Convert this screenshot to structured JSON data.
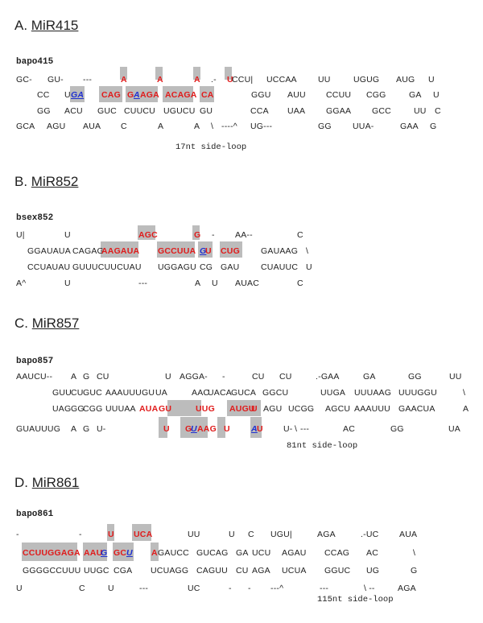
{
  "panels": [
    {
      "letter": "A.",
      "gene": "MiR415",
      "seq_name": "bapo415",
      "note": "17nt side-loop",
      "rows": [
        [
          {
            "t": "GC-"
          },
          {
            "t": "GU-"
          },
          {
            "t": "---"
          },
          {
            "t": "A",
            "c": "red"
          },
          {
            "t": "A",
            "c": "red"
          },
          {
            "t": "A",
            "c": "red"
          },
          {
            "t": ".-"
          },
          {
            "t": "U",
            "c": "red"
          },
          {
            "t": "CCU|"
          },
          {
            "t": "UCCAA"
          },
          {
            "t": "UU"
          },
          {
            "t": "UGUG"
          },
          {
            "t": "AUG"
          },
          {
            "t": "U"
          }
        ],
        [
          {
            "t": "CC"
          },
          {
            "t": "U"
          },
          {
            "t": "GA",
            "c": "blue"
          },
          {
            "t": "CAG",
            "c": "red"
          },
          {
            "t": "G",
            "c": "red"
          },
          {
            "t": "A",
            "c": "blue"
          },
          {
            "t": "AGA",
            "c": "red"
          },
          {
            "t": "ACAGA",
            "c": "red"
          },
          {
            "t": "CA",
            "c": "red"
          },
          {
            "t": "GGU"
          },
          {
            "t": "AUU"
          },
          {
            "t": "CCUU"
          },
          {
            "t": "CGG"
          },
          {
            "t": "GA"
          },
          {
            "t": "U"
          }
        ],
        [
          {
            "t": "GG"
          },
          {
            "t": "ACU"
          },
          {
            "t": "GUC"
          },
          {
            "t": "CUUCU"
          },
          {
            "t": "UGUCU"
          },
          {
            "t": "GU"
          },
          {
            "t": "CCA"
          },
          {
            "t": "UAA"
          },
          {
            "t": "GGAA"
          },
          {
            "t": "GCC"
          },
          {
            "t": "UU"
          },
          {
            "t": "C"
          }
        ],
        [
          {
            "t": "GCA"
          },
          {
            "t": "AGU"
          },
          {
            "t": "AUA"
          },
          {
            "t": "C"
          },
          {
            "t": "A"
          },
          {
            "t": "A"
          },
          {
            "t": "\\"
          },
          {
            "t": "----^"
          },
          {
            "t": "UG---"
          },
          {
            "t": "GG"
          },
          {
            "t": "UUA-"
          },
          {
            "t": "GAA"
          },
          {
            "t": "G"
          }
        ]
      ]
    },
    {
      "letter": "B.",
      "gene": "MiR852",
      "seq_name": "bsex852",
      "note": "",
      "rows": [
        [
          {
            "t": "U|"
          },
          {
            "t": "U"
          },
          {
            "t": "AGC",
            "c": "red"
          },
          {
            "t": "G",
            "c": "red"
          },
          {
            "t": "-"
          },
          {
            "t": "AA--"
          },
          {
            "t": "C"
          }
        ],
        [
          {
            "t": "GGAUAUA"
          },
          {
            "t": "CAGAG"
          },
          {
            "t": "AAGAUA",
            "c": "red"
          },
          {
            "t": "GCCUUA",
            "c": "red"
          },
          {
            "t": "G",
            "c": "blue"
          },
          {
            "t": "U",
            "c": "red"
          },
          {
            "t": "CUG",
            "c": "red"
          },
          {
            "t": "GAUAAG"
          },
          {
            "t": "\\"
          }
        ],
        [
          {
            "t": "CCUAUAU"
          },
          {
            "t": "GUUUCUUCUAU"
          },
          {
            "t": "UGGAGU"
          },
          {
            "t": "CG"
          },
          {
            "t": "GAU"
          },
          {
            "t": "CUAUUC"
          },
          {
            "t": "U"
          }
        ],
        [
          {
            "t": "A^"
          },
          {
            "t": "U"
          },
          {
            "t": "---"
          },
          {
            "t": "A"
          },
          {
            "t": "U"
          },
          {
            "t": "AUAC"
          },
          {
            "t": "C"
          }
        ]
      ]
    },
    {
      "letter": "C.",
      "gene": "MiR857",
      "seq_name": "bapo857",
      "note": "81nt side-loop",
      "rows": [
        [
          {
            "t": "AAUCU--"
          },
          {
            "t": "A"
          },
          {
            "t": "G"
          },
          {
            "t": "CU"
          },
          {
            "t": "U"
          },
          {
            "t": "AGGA-"
          },
          {
            "t": "-"
          },
          {
            "t": "CU"
          },
          {
            "t": "CU"
          },
          {
            "t": ".-GAA"
          },
          {
            "t": "GA"
          },
          {
            "t": "GG"
          },
          {
            "t": "UU"
          }
        ],
        [
          {
            "t": "GUU"
          },
          {
            "t": "CU"
          },
          {
            "t": "GUC"
          },
          {
            "t": "AAAUUUGU"
          },
          {
            "t": "UA"
          },
          {
            "t": "AAC"
          },
          {
            "t": "UACA"
          },
          {
            "t": "GUCA"
          },
          {
            "t": "GGCU"
          },
          {
            "t": "UUGA"
          },
          {
            "t": "UUUAAG"
          },
          {
            "t": "UUUGGU"
          },
          {
            "t": "\\"
          }
        ],
        [
          {
            "t": "UAG"
          },
          {
            "t": "GG"
          },
          {
            "t": "CGG"
          },
          {
            "t": "UUUAA"
          },
          {
            "t": "AUA",
            "c": "red"
          },
          {
            "t": "GU",
            "c": "red"
          },
          {
            "t": "UUG",
            "c": "red"
          },
          {
            "t": "AUGU",
            "c": "red"
          },
          {
            "t": "U",
            "c": "red"
          },
          {
            "t": "AGU"
          },
          {
            "t": "UCGG"
          },
          {
            "t": "AGCU"
          },
          {
            "t": "AAAUUU"
          },
          {
            "t": "GAACUA"
          },
          {
            "t": "A"
          }
        ],
        [
          {
            "t": "GUAUUUG"
          },
          {
            "t": "A"
          },
          {
            "t": "G"
          },
          {
            "t": "U-"
          },
          {
            "t": "U",
            "c": "red"
          },
          {
            "t": "G",
            "c": "red"
          },
          {
            "t": "U",
            "c": "blue"
          },
          {
            "t": "AAG",
            "c": "red"
          },
          {
            "t": "U",
            "c": "red"
          },
          {
            "t": "A",
            "c": "blue"
          },
          {
            "t": "U",
            "c": "red"
          },
          {
            "t": "U-"
          },
          {
            "t": "\\"
          },
          {
            "t": "---"
          },
          {
            "t": "AC"
          },
          {
            "t": "GG"
          },
          {
            "t": "UA"
          }
        ]
      ]
    },
    {
      "letter": "D.",
      "gene": "MiR861",
      "seq_name": "bapo861",
      "note": "115nt side-loop",
      "rows": [
        [
          {
            "t": "-"
          },
          {
            "t": "-"
          },
          {
            "t": "U",
            "c": "red"
          },
          {
            "t": "UCA",
            "c": "red"
          },
          {
            "t": "UU"
          },
          {
            "t": "U"
          },
          {
            "t": "C"
          },
          {
            "t": "UGU|"
          },
          {
            "t": "AGA"
          },
          {
            "t": ".-UC"
          },
          {
            "t": "AUA"
          }
        ],
        [
          {
            "t": "CCUUGGAGA",
            "c": "red"
          },
          {
            "t": "AAU",
            "c": "red"
          },
          {
            "t": "G",
            "c": "blue"
          },
          {
            "t": "GC",
            "c": "red"
          },
          {
            "t": "U",
            "c": "blue"
          },
          {
            "t": "A",
            "c": "red"
          },
          {
            "t": "GAUCC"
          },
          {
            "t": "GUCAG"
          },
          {
            "t": "GA"
          },
          {
            "t": "UCU"
          },
          {
            "t": "AGAU"
          },
          {
            "t": "CCAG"
          },
          {
            "t": "AC"
          },
          {
            "t": "\\"
          }
        ],
        [
          {
            "t": "GGGGCCUUU"
          },
          {
            "t": "UUGC"
          },
          {
            "t": "CGA"
          },
          {
            "t": "UCUAGG"
          },
          {
            "t": "CAGUU"
          },
          {
            "t": "CU"
          },
          {
            "t": "AGA"
          },
          {
            "t": "UCUA"
          },
          {
            "t": "GGUC"
          },
          {
            "t": "UG"
          },
          {
            "t": "G"
          }
        ],
        [
          {
            "t": "U"
          },
          {
            "t": "C"
          },
          {
            "t": "U"
          },
          {
            "t": "---"
          },
          {
            "t": "UC"
          },
          {
            "t": "-"
          },
          {
            "t": "-"
          },
          {
            "t": "---^"
          },
          {
            "t": "---"
          },
          {
            "t": "\\ --"
          },
          {
            "t": "AGA"
          }
        ]
      ]
    }
  ]
}
